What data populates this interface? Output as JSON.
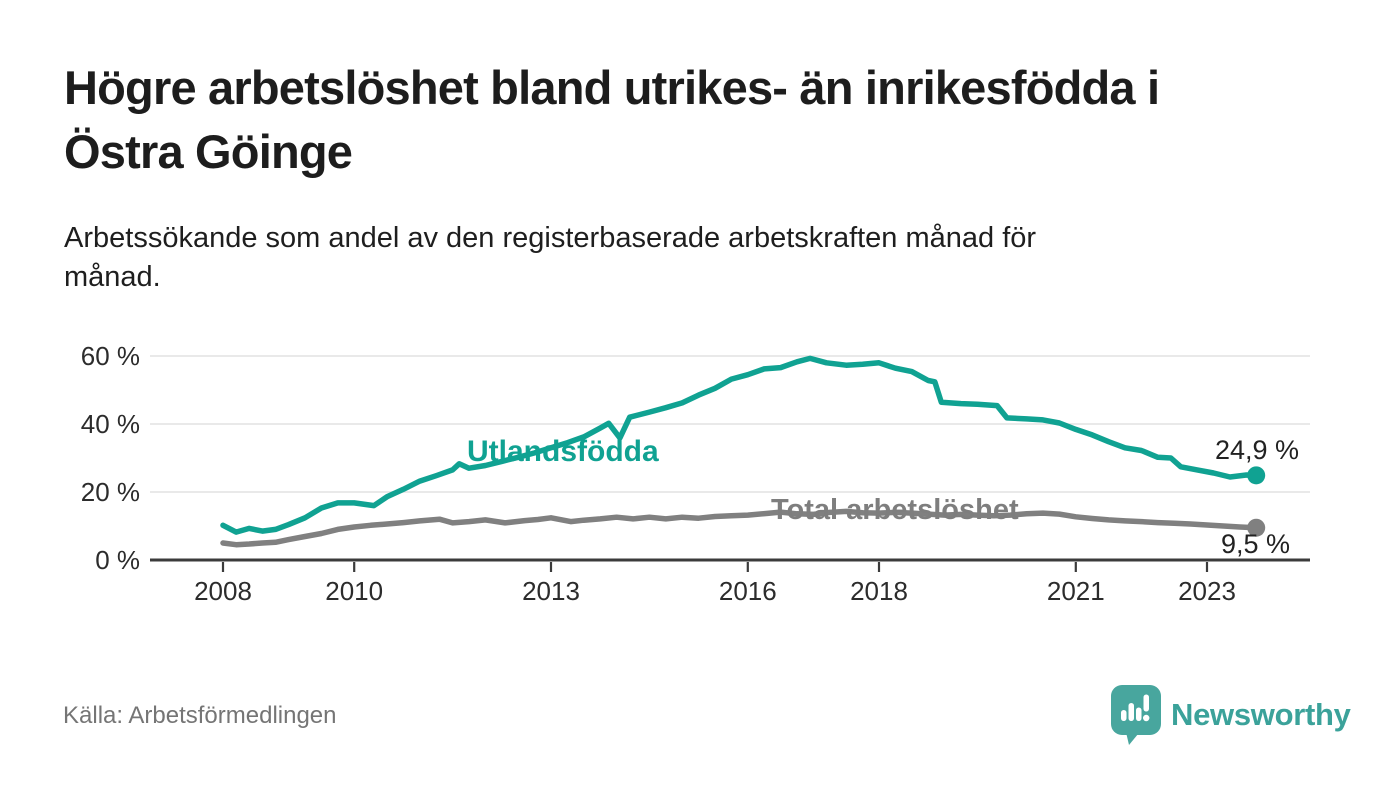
{
  "header": {
    "title": "Högre arbetslöshet bland utrikes- än inrikesfödda i Östra Göinge",
    "title_lines": [
      "Högre arbetslöshet bland utrikes- än inrikesfödda i",
      "Östra Göinge"
    ],
    "subtitle": "Arbetssökande som andel av den registerbaserade arbetskraften månad för månad.",
    "subtitle_lines": [
      "Arbetssökande som andel av den registerbaserade arbetskraften månad för",
      "månad."
    ]
  },
  "footer": {
    "source": "Källa: Arbetsförmedlingen",
    "brand": "Newsworthy"
  },
  "colors": {
    "series_foreign": "#10a292",
    "series_total": "#808080",
    "grid": "#e2e2e2",
    "axis": "#3b3b3b",
    "tick_text": "#2c2c2c",
    "value_label": "#222222",
    "muted_text": "#757575",
    "logo_square": "#48a69e",
    "logo_wordmark": "#3ba29a"
  },
  "chart_data": {
    "type": "line",
    "x_unit": "decimal_year",
    "xlim": [
      2006.9,
      2024.6
    ],
    "ylim": [
      0,
      63
    ],
    "grid": "horizontal",
    "legend": "inline-series-labels",
    "x_ticks": [
      2008,
      2010,
      2013,
      2016,
      2018,
      2021,
      2023
    ],
    "y_ticks": [
      {
        "value": 0,
        "label": "0 %"
      },
      {
        "value": 20,
        "label": "20 %"
      },
      {
        "value": 40,
        "label": "40 %"
      },
      {
        "value": 60,
        "label": "60 %"
      }
    ],
    "series": [
      {
        "name": "Utlandsfödda",
        "color": "#10a292",
        "end_label": "24,9 %",
        "end_value": 24.9,
        "points": [
          [
            2008.0,
            10.2
          ],
          [
            2008.2,
            8.2
          ],
          [
            2008.4,
            9.3
          ],
          [
            2008.6,
            8.5
          ],
          [
            2008.8,
            9.0
          ],
          [
            2009.0,
            10.4
          ],
          [
            2009.25,
            12.4
          ],
          [
            2009.5,
            15.3
          ],
          [
            2009.75,
            16.8
          ],
          [
            2010.0,
            16.8
          ],
          [
            2010.3,
            16.0
          ],
          [
            2010.5,
            18.6
          ],
          [
            2010.75,
            20.8
          ],
          [
            2011.0,
            23.2
          ],
          [
            2011.25,
            24.8
          ],
          [
            2011.5,
            26.5
          ],
          [
            2011.6,
            28.3
          ],
          [
            2011.75,
            27.0
          ],
          [
            2012.0,
            27.8
          ],
          [
            2012.25,
            29.0
          ],
          [
            2012.5,
            30.2
          ],
          [
            2012.75,
            31.5
          ],
          [
            2013.0,
            33.0
          ],
          [
            2013.25,
            34.5
          ],
          [
            2013.5,
            36.2
          ],
          [
            2013.75,
            38.8
          ],
          [
            2013.88,
            40.2
          ],
          [
            2014.05,
            35.9
          ],
          [
            2014.2,
            42.0
          ],
          [
            2014.5,
            43.5
          ],
          [
            2014.75,
            44.8
          ],
          [
            2015.0,
            46.2
          ],
          [
            2015.25,
            48.5
          ],
          [
            2015.5,
            50.5
          ],
          [
            2015.75,
            53.2
          ],
          [
            2016.0,
            54.5
          ],
          [
            2016.25,
            56.2
          ],
          [
            2016.5,
            56.6
          ],
          [
            2016.75,
            58.3
          ],
          [
            2016.95,
            59.3
          ],
          [
            2017.2,
            58.0
          ],
          [
            2017.5,
            57.3
          ],
          [
            2017.75,
            57.6
          ],
          [
            2018.0,
            58.0
          ],
          [
            2018.25,
            56.4
          ],
          [
            2018.5,
            55.4
          ],
          [
            2018.75,
            52.8
          ],
          [
            2018.85,
            52.4
          ],
          [
            2018.95,
            46.4
          ],
          [
            2019.25,
            46.0
          ],
          [
            2019.5,
            45.8
          ],
          [
            2019.8,
            45.4
          ],
          [
            2019.95,
            41.8
          ],
          [
            2020.25,
            41.5
          ],
          [
            2020.5,
            41.2
          ],
          [
            2020.75,
            40.3
          ],
          [
            2021.0,
            38.4
          ],
          [
            2021.25,
            36.8
          ],
          [
            2021.5,
            34.8
          ],
          [
            2021.75,
            33.0
          ],
          [
            2022.0,
            32.2
          ],
          [
            2022.25,
            30.2
          ],
          [
            2022.45,
            30.0
          ],
          [
            2022.6,
            27.4
          ],
          [
            2022.85,
            26.5
          ],
          [
            2023.1,
            25.6
          ],
          [
            2023.35,
            24.4
          ],
          [
            2023.6,
            25.0
          ],
          [
            2023.75,
            24.9
          ]
        ]
      },
      {
        "name": "Total arbetslöshet",
        "color": "#808080",
        "end_label": "9,5 %",
        "end_value": 9.5,
        "points": [
          [
            2008.0,
            5.0
          ],
          [
            2008.2,
            4.5
          ],
          [
            2008.4,
            4.7
          ],
          [
            2008.6,
            5.0
          ],
          [
            2008.8,
            5.2
          ],
          [
            2009.0,
            6.0
          ],
          [
            2009.25,
            6.9
          ],
          [
            2009.5,
            7.8
          ],
          [
            2009.75,
            9.0
          ],
          [
            2010.0,
            9.7
          ],
          [
            2010.25,
            10.2
          ],
          [
            2010.5,
            10.6
          ],
          [
            2010.75,
            11.0
          ],
          [
            2011.0,
            11.5
          ],
          [
            2011.3,
            12.0
          ],
          [
            2011.5,
            10.9
          ],
          [
            2011.75,
            11.3
          ],
          [
            2012.0,
            11.8
          ],
          [
            2012.3,
            10.9
          ],
          [
            2012.6,
            11.6
          ],
          [
            2012.8,
            11.9
          ],
          [
            2013.0,
            12.4
          ],
          [
            2013.3,
            11.3
          ],
          [
            2013.5,
            11.7
          ],
          [
            2013.75,
            12.1
          ],
          [
            2014.0,
            12.6
          ],
          [
            2014.25,
            12.1
          ],
          [
            2014.5,
            12.6
          ],
          [
            2014.75,
            12.1
          ],
          [
            2015.0,
            12.6
          ],
          [
            2015.25,
            12.3
          ],
          [
            2015.5,
            12.8
          ],
          [
            2015.75,
            13.0
          ],
          [
            2016.0,
            13.2
          ],
          [
            2016.3,
            13.7
          ],
          [
            2016.5,
            14.1
          ],
          [
            2016.75,
            13.6
          ],
          [
            2017.0,
            13.4
          ],
          [
            2017.25,
            14.0
          ],
          [
            2017.5,
            14.3
          ],
          [
            2017.75,
            13.9
          ],
          [
            2018.0,
            13.8
          ],
          [
            2018.25,
            14.0
          ],
          [
            2018.5,
            13.8
          ],
          [
            2018.75,
            13.5
          ],
          [
            2019.0,
            13.2
          ],
          [
            2019.25,
            13.4
          ],
          [
            2019.5,
            13.2
          ],
          [
            2019.75,
            13.0
          ],
          [
            2020.0,
            13.2
          ],
          [
            2020.25,
            13.6
          ],
          [
            2020.5,
            13.8
          ],
          [
            2020.75,
            13.5
          ],
          [
            2021.0,
            12.7
          ],
          [
            2021.25,
            12.2
          ],
          [
            2021.5,
            11.8
          ],
          [
            2021.75,
            11.5
          ],
          [
            2022.0,
            11.3
          ],
          [
            2022.25,
            11.0
          ],
          [
            2022.5,
            10.8
          ],
          [
            2022.75,
            10.6
          ],
          [
            2023.0,
            10.3
          ],
          [
            2023.25,
            10.0
          ],
          [
            2023.5,
            9.7
          ],
          [
            2023.75,
            9.5
          ]
        ]
      }
    ]
  }
}
